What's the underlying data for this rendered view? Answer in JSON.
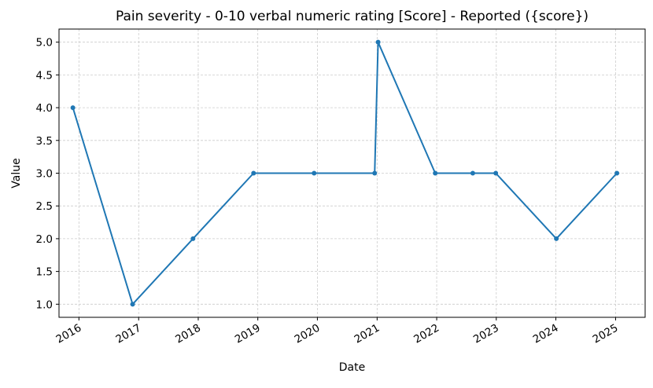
{
  "chart_data": {
    "type": "line",
    "title": "Pain severity - 0-10 verbal numeric rating [Score] - Reported ({score})",
    "xlabel": "Date",
    "ylabel": "Value",
    "x_axis_type": "date",
    "xlim": [
      "2015-09-01",
      "2025-07-01"
    ],
    "ylim": [
      0.8,
      5.2
    ],
    "x_ticks": [
      "2016",
      "2017",
      "2018",
      "2019",
      "2020",
      "2021",
      "2022",
      "2023",
      "2024",
      "2025"
    ],
    "x_tick_dates": [
      "2016-01-01",
      "2017-01-01",
      "2018-01-01",
      "2019-01-01",
      "2020-01-01",
      "2021-01-01",
      "2022-01-01",
      "2023-01-01",
      "2024-01-01",
      "2025-01-01"
    ],
    "y_ticks": [
      "1.0",
      "1.5",
      "2.0",
      "2.5",
      "3.0",
      "3.5",
      "4.0",
      "4.5",
      "5.0"
    ],
    "grid": true,
    "legend": "none",
    "series": [
      {
        "x": [
          "2015-11-25",
          "2016-11-25",
          "2017-11-30",
          "2018-12-06",
          "2019-12-12",
          "2020-12-17",
          "2021-01-07",
          "2021-12-23",
          "2022-08-10",
          "2022-12-29",
          "2024-01-04",
          "2025-01-09"
        ],
        "y": [
          4,
          1,
          2,
          3,
          3,
          3,
          5,
          3,
          3,
          3,
          2,
          3
        ],
        "color": "#1f77b4"
      }
    ]
  }
}
